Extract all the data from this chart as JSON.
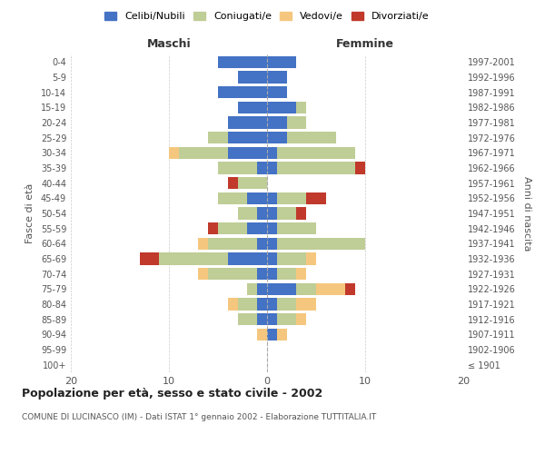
{
  "age_groups": [
    "100+",
    "95-99",
    "90-94",
    "85-89",
    "80-84",
    "75-79",
    "70-74",
    "65-69",
    "60-64",
    "55-59",
    "50-54",
    "45-49",
    "40-44",
    "35-39",
    "30-34",
    "25-29",
    "20-24",
    "15-19",
    "10-14",
    "5-9",
    "0-4"
  ],
  "birth_years": [
    "≤ 1901",
    "1902-1906",
    "1907-1911",
    "1912-1916",
    "1917-1921",
    "1922-1926",
    "1927-1931",
    "1932-1936",
    "1937-1941",
    "1942-1946",
    "1947-1951",
    "1952-1956",
    "1957-1961",
    "1962-1966",
    "1967-1971",
    "1972-1976",
    "1977-1981",
    "1982-1986",
    "1987-1991",
    "1992-1996",
    "1997-2001"
  ],
  "maschi": {
    "celibi": [
      0,
      0,
      0,
      1,
      1,
      1,
      1,
      4,
      1,
      2,
      1,
      2,
      0,
      1,
      4,
      4,
      4,
      3,
      5,
      3,
      5
    ],
    "coniugati": [
      0,
      0,
      0,
      2,
      2,
      1,
      5,
      7,
      5,
      3,
      2,
      3,
      3,
      4,
      5,
      2,
      0,
      0,
      0,
      0,
      0
    ],
    "vedovi": [
      0,
      0,
      1,
      0,
      1,
      0,
      1,
      0,
      1,
      0,
      0,
      0,
      0,
      0,
      1,
      0,
      0,
      0,
      0,
      0,
      0
    ],
    "divorziati": [
      0,
      0,
      0,
      0,
      0,
      0,
      0,
      2,
      0,
      1,
      0,
      0,
      1,
      0,
      0,
      0,
      0,
      0,
      0,
      0,
      0
    ]
  },
  "femmine": {
    "nubili": [
      0,
      0,
      1,
      1,
      1,
      3,
      1,
      1,
      1,
      1,
      1,
      1,
      0,
      1,
      1,
      2,
      2,
      3,
      2,
      2,
      3
    ],
    "coniugate": [
      0,
      0,
      0,
      2,
      2,
      2,
      2,
      3,
      9,
      4,
      2,
      3,
      0,
      8,
      8,
      5,
      2,
      1,
      0,
      0,
      0
    ],
    "vedove": [
      0,
      0,
      1,
      1,
      2,
      3,
      1,
      1,
      0,
      0,
      0,
      0,
      0,
      0,
      0,
      0,
      0,
      0,
      0,
      0,
      0
    ],
    "divorziate": [
      0,
      0,
      0,
      0,
      0,
      1,
      0,
      0,
      0,
      0,
      1,
      2,
      0,
      1,
      0,
      0,
      0,
      0,
      0,
      0,
      0
    ]
  },
  "colors": {
    "celibi": "#4472C4",
    "coniugati": "#BFCD96",
    "vedovi": "#F5C77E",
    "divorziati": "#C0392B"
  },
  "xlim": 20,
  "title": "Popolazione per età, sesso e stato civile - 2002",
  "subtitle": "COMUNE DI LUCINASCO (IM) - Dati ISTAT 1° gennaio 2002 - Elaborazione TUTTITALIA.IT",
  "ylabel_left": "Fasce di età",
  "ylabel_right": "Anni di nascita",
  "legend_labels": [
    "Celibi/Nubili",
    "Coniugati/e",
    "Vedovi/e",
    "Divorziati/e"
  ],
  "maschi_label": "Maschi",
  "femmine_label": "Femmine"
}
